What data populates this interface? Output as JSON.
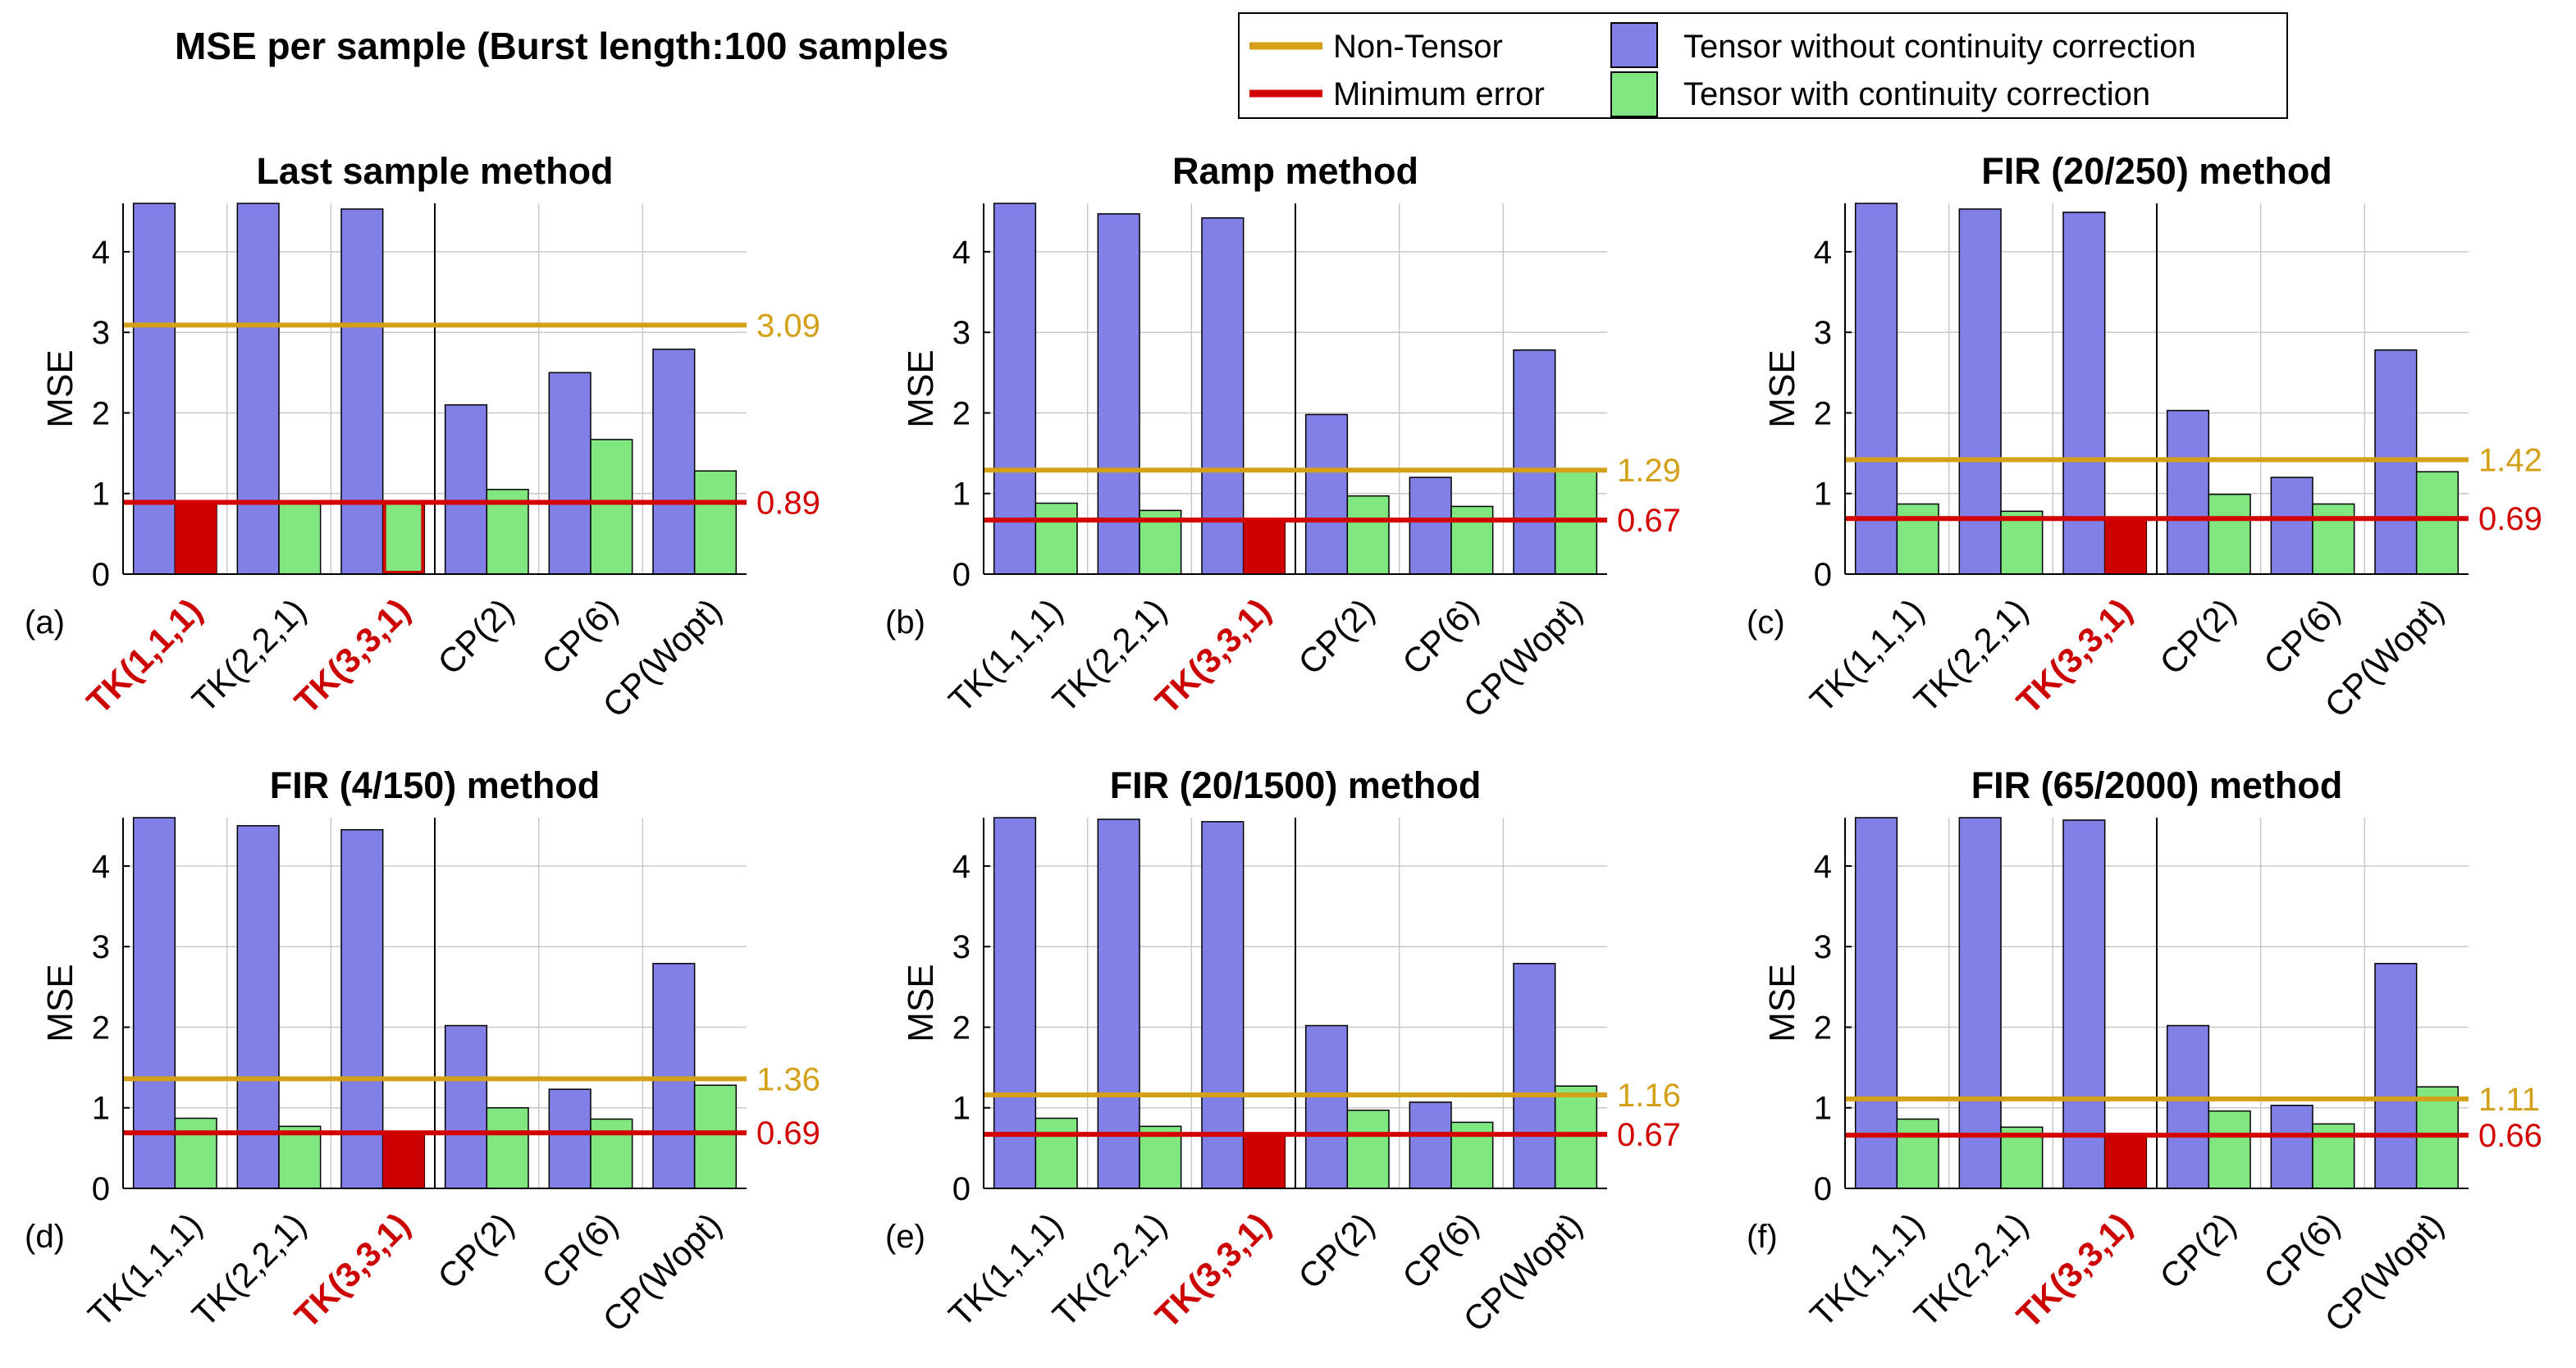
{
  "figure_title": "MSE per sample (Burst length:100 samples",
  "legend": {
    "non_tensor": "Non-Tensor",
    "minimum_error": "Minimum error",
    "tensor_without": "Tensor without continuity correction",
    "tensor_with": "Tensor with continuity correction"
  },
  "colors": {
    "tensor_without": "#8080e6",
    "tensor_with": "#80e680",
    "non_tensor": "#d4a017",
    "minimum_error": "#d40000",
    "min_bar_fill": "#cc0000",
    "grid": "#c8c8c8",
    "highlight_label": "#cc0000"
  },
  "chart_data": [
    {
      "type": "bar",
      "letter": "(a)",
      "title": "Last sample method",
      "ylabel": "MSE",
      "ylim": [
        0,
        4.6
      ],
      "yticks": [
        0,
        1,
        2,
        3,
        4
      ],
      "grid": true,
      "categories": [
        "TK(1,1,1)",
        "TK(2,2,1)",
        "TK(3,3,1)",
        "CP(2)",
        "CP(6)",
        "CP(Wopt)"
      ],
      "highlighted_categories": [
        0,
        2
      ],
      "series": [
        {
          "name": "Tensor without continuity correction",
          "values": [
            4.62,
            4.6,
            4.53,
            2.1,
            2.5,
            2.79
          ]
        },
        {
          "name": "Tensor with continuity correction",
          "values": [
            0.89,
            0.89,
            0.89,
            1.05,
            1.67,
            1.28
          ]
        }
      ],
      "min_bars": [
        {
          "category": 0,
          "style": "filled"
        },
        {
          "category": 2,
          "style": "outline"
        }
      ],
      "non_tensor": 3.09,
      "minimum_error": 0.89,
      "non_tensor_label": "3.09",
      "minimum_error_label": "0.89"
    },
    {
      "type": "bar",
      "letter": "(b)",
      "title": "Ramp method",
      "ylabel": "MSE",
      "ylim": [
        0,
        4.6
      ],
      "yticks": [
        0,
        1,
        2,
        3,
        4
      ],
      "grid": true,
      "categories": [
        "TK(1,1,1)",
        "TK(2,2,1)",
        "TK(3,3,1)",
        "CP(2)",
        "CP(6)",
        "CP(Wopt)"
      ],
      "highlighted_categories": [
        2
      ],
      "series": [
        {
          "name": "Tensor without continuity correction",
          "values": [
            4.62,
            4.47,
            4.42,
            1.98,
            1.2,
            2.78
          ]
        },
        {
          "name": "Tensor with continuity correction",
          "values": [
            0.88,
            0.79,
            0.67,
            0.97,
            0.84,
            1.27
          ]
        }
      ],
      "min_bars": [
        {
          "category": 2,
          "style": "filled"
        }
      ],
      "non_tensor": 1.29,
      "minimum_error": 0.67,
      "non_tensor_label": "1.29",
      "minimum_error_label": "0.67"
    },
    {
      "type": "bar",
      "letter": "(c)",
      "title": "FIR (20/250) method",
      "ylabel": "MSE",
      "ylim": [
        0,
        4.6
      ],
      "yticks": [
        0,
        1,
        2,
        3,
        4
      ],
      "grid": true,
      "categories": [
        "TK(1,1,1)",
        "TK(2,2,1)",
        "TK(3,3,1)",
        "CP(2)",
        "CP(6)",
        "CP(Wopt)"
      ],
      "highlighted_categories": [
        2
      ],
      "series": [
        {
          "name": "Tensor without continuity correction",
          "values": [
            4.62,
            4.53,
            4.49,
            2.03,
            1.2,
            2.78
          ]
        },
        {
          "name": "Tensor with continuity correction",
          "values": [
            0.87,
            0.78,
            0.69,
            0.99,
            0.87,
            1.27
          ]
        }
      ],
      "min_bars": [
        {
          "category": 2,
          "style": "filled"
        }
      ],
      "non_tensor": 1.42,
      "minimum_error": 0.69,
      "non_tensor_label": "1.42",
      "minimum_error_label": "0.69"
    },
    {
      "type": "bar",
      "letter": "(d)",
      "title": "FIR (4/150) method",
      "ylabel": "MSE",
      "ylim": [
        0,
        4.6
      ],
      "yticks": [
        0,
        1,
        2,
        3,
        4
      ],
      "grid": true,
      "categories": [
        "TK(1,1,1)",
        "TK(2,2,1)",
        "TK(3,3,1)",
        "CP(2)",
        "CP(6)",
        "CP(Wopt)"
      ],
      "highlighted_categories": [
        2
      ],
      "series": [
        {
          "name": "Tensor without continuity correction",
          "values": [
            4.62,
            4.5,
            4.45,
            2.02,
            1.23,
            2.79
          ]
        },
        {
          "name": "Tensor with continuity correction",
          "values": [
            0.87,
            0.77,
            0.69,
            1.0,
            0.86,
            1.28
          ]
        }
      ],
      "min_bars": [
        {
          "category": 2,
          "style": "filled"
        }
      ],
      "non_tensor": 1.36,
      "minimum_error": 0.69,
      "non_tensor_label": "1.36",
      "minimum_error_label": "0.69"
    },
    {
      "type": "bar",
      "letter": "(e)",
      "title": "FIR (20/1500) method",
      "ylabel": "MSE",
      "ylim": [
        0,
        4.6
      ],
      "yticks": [
        0,
        1,
        2,
        3,
        4
      ],
      "grid": true,
      "categories": [
        "TK(1,1,1)",
        "TK(2,2,1)",
        "TK(3,3,1)",
        "CP(2)",
        "CP(6)",
        "CP(Wopt)"
      ],
      "highlighted_categories": [
        2
      ],
      "series": [
        {
          "name": "Tensor without continuity correction",
          "values": [
            4.62,
            4.58,
            4.55,
            2.02,
            1.07,
            2.79
          ]
        },
        {
          "name": "Tensor with continuity correction",
          "values": [
            0.87,
            0.77,
            0.67,
            0.97,
            0.82,
            1.27
          ]
        }
      ],
      "min_bars": [
        {
          "category": 2,
          "style": "filled"
        }
      ],
      "non_tensor": 1.16,
      "minimum_error": 0.67,
      "non_tensor_label": "1.16",
      "minimum_error_label": "0.67"
    },
    {
      "type": "bar",
      "letter": "(f)",
      "title": "FIR (65/2000) method",
      "ylabel": "MSE",
      "ylim": [
        0,
        4.6
      ],
      "yticks": [
        0,
        1,
        2,
        3,
        4
      ],
      "grid": true,
      "categories": [
        "TK(1,1,1)",
        "TK(2,2,1)",
        "TK(3,3,1)",
        "CP(2)",
        "CP(6)",
        "CP(Wopt)"
      ],
      "highlighted_categories": [
        2
      ],
      "series": [
        {
          "name": "Tensor without continuity correction",
          "values": [
            4.62,
            4.6,
            4.57,
            2.02,
            1.03,
            2.79
          ]
        },
        {
          "name": "Tensor with continuity correction",
          "values": [
            0.86,
            0.76,
            0.66,
            0.96,
            0.8,
            1.26
          ]
        }
      ],
      "min_bars": [
        {
          "category": 2,
          "style": "filled"
        }
      ],
      "non_tensor": 1.11,
      "minimum_error": 0.66,
      "non_tensor_label": "1.11",
      "minimum_error_label": "0.66"
    }
  ]
}
